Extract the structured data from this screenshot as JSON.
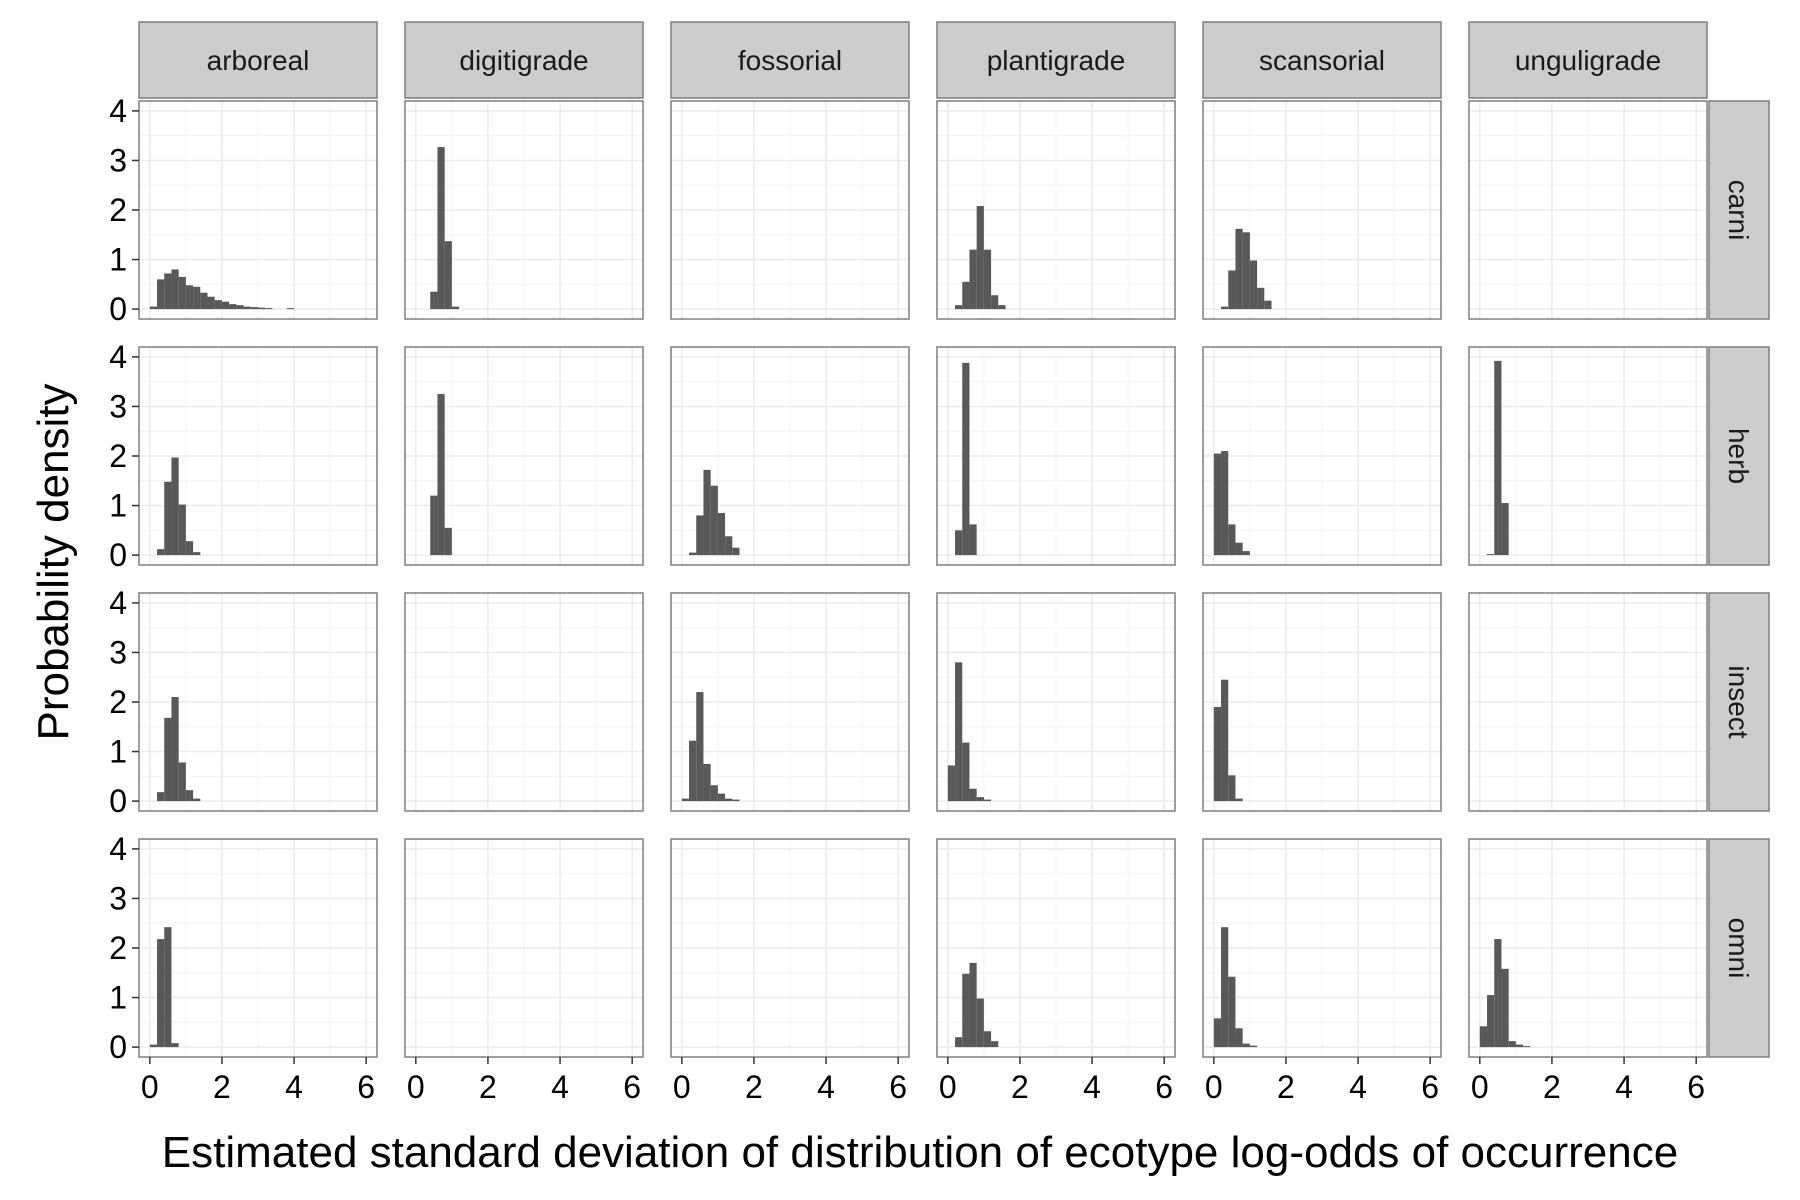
{
  "chart_data": {
    "type": "bar",
    "subtype": "faceted-histogram",
    "xlabel": "Estimated standard deviation of distribution of ecotype log-odds of occurrence",
    "ylabel": "Probability density",
    "xlim": [
      -0.3,
      6.3
    ],
    "ylim": [
      -0.2,
      4.2
    ],
    "x_ticks": [
      0,
      2,
      4,
      6
    ],
    "y_ticks": [
      0,
      1,
      2,
      3,
      4
    ],
    "bin_width": 0.2,
    "grid": true,
    "columns": [
      "arboreal",
      "digitigrade",
      "fossorial",
      "plantigrade",
      "scansorial",
      "unguligrade"
    ],
    "rows": [
      "carni",
      "herb",
      "insect",
      "omni"
    ],
    "colors": {
      "bar": "#595959",
      "strip_fill": "#cccccc",
      "panel_border": "#7f7f7f",
      "grid_major": "#ebebeb",
      "grid_minor": "#f5f5f5"
    },
    "panels": {
      "carni": {
        "arboreal": [
          [
            0.1,
            0.05
          ],
          [
            0.3,
            0.6
          ],
          [
            0.5,
            0.72
          ],
          [
            0.7,
            0.8
          ],
          [
            0.9,
            0.65
          ],
          [
            1.1,
            0.48
          ],
          [
            1.3,
            0.45
          ],
          [
            1.5,
            0.33
          ],
          [
            1.7,
            0.25
          ],
          [
            1.9,
            0.18
          ],
          [
            2.1,
            0.15
          ],
          [
            2.3,
            0.1
          ],
          [
            2.5,
            0.08
          ],
          [
            2.7,
            0.05
          ],
          [
            2.9,
            0.04
          ],
          [
            3.1,
            0.03
          ],
          [
            3.3,
            0.02
          ],
          [
            3.9,
            0.02
          ]
        ],
        "digitigrade": [
          [
            0.5,
            0.35
          ],
          [
            0.7,
            3.27
          ],
          [
            0.9,
            1.37
          ],
          [
            1.1,
            0.05
          ]
        ],
        "fossorial": [],
        "plantigrade": [
          [
            0.3,
            0.08
          ],
          [
            0.5,
            0.55
          ],
          [
            0.7,
            1.2
          ],
          [
            0.9,
            2.08
          ],
          [
            1.1,
            1.2
          ],
          [
            1.3,
            0.28
          ],
          [
            1.5,
            0.08
          ]
        ],
        "scansorial": [
          [
            0.3,
            0.05
          ],
          [
            0.5,
            0.78
          ],
          [
            0.7,
            1.62
          ],
          [
            0.9,
            1.55
          ],
          [
            1.1,
            0.98
          ],
          [
            1.3,
            0.43
          ],
          [
            1.5,
            0.17
          ]
        ],
        "unguligrade": []
      },
      "herb": {
        "arboreal": [
          [
            0.3,
            0.12
          ],
          [
            0.5,
            1.48
          ],
          [
            0.7,
            1.97
          ],
          [
            0.9,
            1.02
          ],
          [
            1.1,
            0.28
          ],
          [
            1.3,
            0.06
          ]
        ],
        "digitigrade": [
          [
            0.5,
            1.2
          ],
          [
            0.7,
            3.25
          ],
          [
            0.9,
            0.55
          ]
        ],
        "fossorial": [
          [
            0.3,
            0.05
          ],
          [
            0.5,
            0.8
          ],
          [
            0.7,
            1.72
          ],
          [
            0.9,
            1.4
          ],
          [
            1.1,
            0.85
          ],
          [
            1.3,
            0.38
          ],
          [
            1.5,
            0.15
          ]
        ],
        "plantigrade": [
          [
            0.3,
            0.5
          ],
          [
            0.5,
            3.88
          ],
          [
            0.7,
            0.62
          ]
        ],
        "scansorial": [
          [
            0.1,
            2.05
          ],
          [
            0.3,
            2.1
          ],
          [
            0.5,
            0.62
          ],
          [
            0.7,
            0.25
          ],
          [
            0.9,
            0.08
          ]
        ],
        "unguligrade": [
          [
            0.3,
            0.02
          ],
          [
            0.5,
            3.92
          ],
          [
            0.7,
            1.05
          ]
        ]
      },
      "insect": {
        "arboreal": [
          [
            0.3,
            0.18
          ],
          [
            0.5,
            1.68
          ],
          [
            0.7,
            2.1
          ],
          [
            0.9,
            0.78
          ],
          [
            1.1,
            0.22
          ],
          [
            1.3,
            0.05
          ]
        ],
        "digitigrade": [],
        "fossorial": [
          [
            0.1,
            0.05
          ],
          [
            0.3,
            1.22
          ],
          [
            0.5,
            2.2
          ],
          [
            0.7,
            0.75
          ],
          [
            0.9,
            0.32
          ],
          [
            1.1,
            0.15
          ],
          [
            1.3,
            0.05
          ],
          [
            1.5,
            0.03
          ]
        ],
        "plantigrade": [
          [
            0.1,
            0.72
          ],
          [
            0.3,
            2.8
          ],
          [
            0.5,
            1.18
          ],
          [
            0.7,
            0.25
          ],
          [
            0.9,
            0.08
          ],
          [
            1.1,
            0.03
          ]
        ],
        "scansorial": [
          [
            0.1,
            1.9
          ],
          [
            0.3,
            2.45
          ],
          [
            0.5,
            0.52
          ],
          [
            0.7,
            0.05
          ]
        ],
        "unguligrade": []
      },
      "omni": {
        "arboreal": [
          [
            0.1,
            0.05
          ],
          [
            0.3,
            2.18
          ],
          [
            0.5,
            2.42
          ],
          [
            0.7,
            0.08
          ]
        ],
        "digitigrade": [],
        "fossorial": [],
        "plantigrade": [
          [
            0.3,
            0.2
          ],
          [
            0.5,
            1.48
          ],
          [
            0.7,
            1.7
          ],
          [
            0.9,
            0.98
          ],
          [
            1.1,
            0.32
          ],
          [
            1.3,
            0.12
          ]
        ],
        "scansorial": [
          [
            0.1,
            0.58
          ],
          [
            0.3,
            2.42
          ],
          [
            0.5,
            1.42
          ],
          [
            0.7,
            0.38
          ],
          [
            0.9,
            0.07
          ],
          [
            1.1,
            0.03
          ]
        ],
        "unguligrade": [
          [
            0.1,
            0.42
          ],
          [
            0.3,
            1.05
          ],
          [
            0.5,
            2.18
          ],
          [
            0.7,
            1.58
          ],
          [
            0.9,
            0.12
          ],
          [
            1.1,
            0.05
          ],
          [
            1.3,
            0.02
          ]
        ]
      }
    }
  }
}
